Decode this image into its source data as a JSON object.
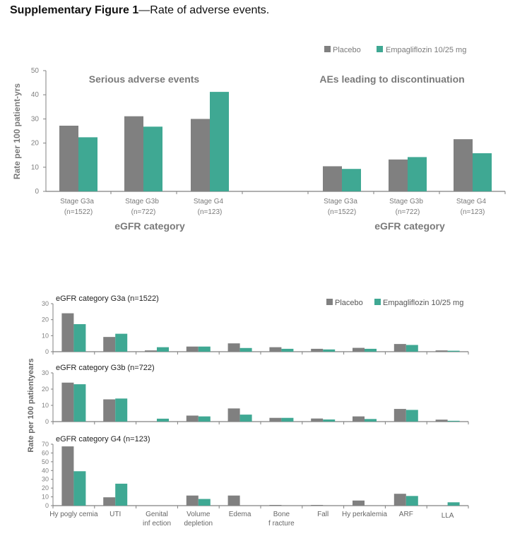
{
  "figure": {
    "title_bold": "Supplementary Figure 1",
    "title_rest": "—Rate of adverse events."
  },
  "colors": {
    "placebo": "#808080",
    "empagliflozin": "#3fa893",
    "axis": "#808080"
  },
  "legend": {
    "placebo": "Placebo",
    "empagliflozin": "Empagliflozin  10/25 mg"
  },
  "chart_data": [
    {
      "type": "bar",
      "title": "Serious adverse events",
      "xlabel": "eGFR category",
      "ylabel": "Rate per 100 patient-yrs",
      "ylim": [
        0,
        50
      ],
      "yticks": [
        0,
        10,
        20,
        30,
        40,
        50
      ],
      "categories": [
        "Stage G3a",
        "Stage G3b",
        "Stage G4"
      ],
      "category_n": [
        "(n=1522)",
        "(n=722)",
        "(n=123)"
      ],
      "series": [
        {
          "name": "Placebo",
          "values": [
            27.2,
            31.1,
            30.0
          ]
        },
        {
          "name": "Empagliflozin 10/25 mg",
          "values": [
            22.4,
            26.8,
            41.2
          ]
        }
      ],
      "legend": "top-right"
    },
    {
      "type": "bar",
      "title": "AEs leading to discontinuation",
      "xlabel": "eGFR category",
      "ylabel": "Rate per 100 patient-yrs",
      "ylim": [
        0,
        50
      ],
      "categories": [
        "Stage G3a",
        "Stage G3b",
        "Stage G4"
      ],
      "category_n": [
        "(n=1522)",
        "(n=722)",
        "(n=123)"
      ],
      "series": [
        {
          "name": "Placebo",
          "values": [
            10.4,
            13.2,
            21.6
          ]
        },
        {
          "name": "Empagliflozin 10/25 mg",
          "values": [
            9.3,
            14.2,
            15.8
          ]
        }
      ]
    },
    {
      "type": "bar",
      "title": "eGFR category G3a (n=1522)",
      "ylabel": "Rate per 100 patientyears",
      "ylim": [
        0,
        30
      ],
      "yticks": [
        0,
        10,
        20,
        30
      ],
      "categories": [
        "Hypoglycemia",
        "UTI",
        "Genital infection",
        "Volume depletion",
        "Edema",
        "Bone fracture",
        "Fall",
        "Hyperkalemia",
        "ARF",
        "LLA"
      ],
      "series": [
        {
          "name": "Placebo",
          "values": [
            24.0,
            9.2,
            0.8,
            3.2,
            5.2,
            2.8,
            1.8,
            2.4,
            4.8,
            0.8
          ]
        },
        {
          "name": "Empagliflozin 10/25 mg",
          "values": [
            17.2,
            11.2,
            2.8,
            3.2,
            2.3,
            1.8,
            1.4,
            1.8,
            4.2,
            0.6
          ]
        }
      ],
      "legend": "top-right"
    },
    {
      "type": "bar",
      "title": "eGFR category G3b (n=722)",
      "ylabel": "Rate per 100 patientyears",
      "ylim": [
        0,
        30
      ],
      "yticks": [
        0,
        10,
        20,
        30
      ],
      "categories": [
        "Hypoglycemia",
        "UTI",
        "Genital infection",
        "Volume depletion",
        "Edema",
        "Bone fracture",
        "Fall",
        "Hyperkalemia",
        "ARF",
        "LLA"
      ],
      "series": [
        {
          "name": "Placebo",
          "values": [
            24.0,
            13.7,
            0,
            3.7,
            8.1,
            2.3,
            1.9,
            3.2,
            7.8,
            1.2
          ]
        },
        {
          "name": "Empagliflozin 10/25 mg",
          "values": [
            23.0,
            14.2,
            1.8,
            3.2,
            4.3,
            2.3,
            1.3,
            1.6,
            7.2,
            0.5
          ]
        }
      ]
    },
    {
      "type": "bar",
      "title": "eGFR category G4 (n=123)",
      "ylabel": "Rate per 100 patientyears",
      "ylim": [
        0,
        70
      ],
      "yticks": [
        0,
        10,
        20,
        30,
        40,
        50,
        60,
        70
      ],
      "categories": [
        "Hypoglycemia",
        "UTI",
        "Genital infection",
        "Volume depletion",
        "Edema",
        "Bone fracture",
        "Fall",
        "Hyperkalemia",
        "ARF",
        "LLA"
      ],
      "category_labels": [
        [
          "Hy pogly cemia"
        ],
        [
          "UTI"
        ],
        [
          "Genital",
          "inf ection"
        ],
        [
          "Volume",
          "depletion"
        ],
        [
          "Edema"
        ],
        [
          "Bone",
          "f racture"
        ],
        [
          "Fall"
        ],
        [
          "Hy perkalemia"
        ],
        [
          "ARF"
        ],
        [
          "LLA"
        ]
      ],
      "series": [
        {
          "name": "Placebo",
          "values": [
            67.5,
            9.5,
            0,
            11.5,
            11.5,
            0.8,
            0.8,
            5.8,
            13.5,
            0
          ]
        },
        {
          "name": "Empagliflozin 10/25 mg",
          "values": [
            39.2,
            25.0,
            0,
            7.6,
            0,
            0,
            0,
            0,
            11.0,
            3.8
          ]
        }
      ]
    }
  ]
}
